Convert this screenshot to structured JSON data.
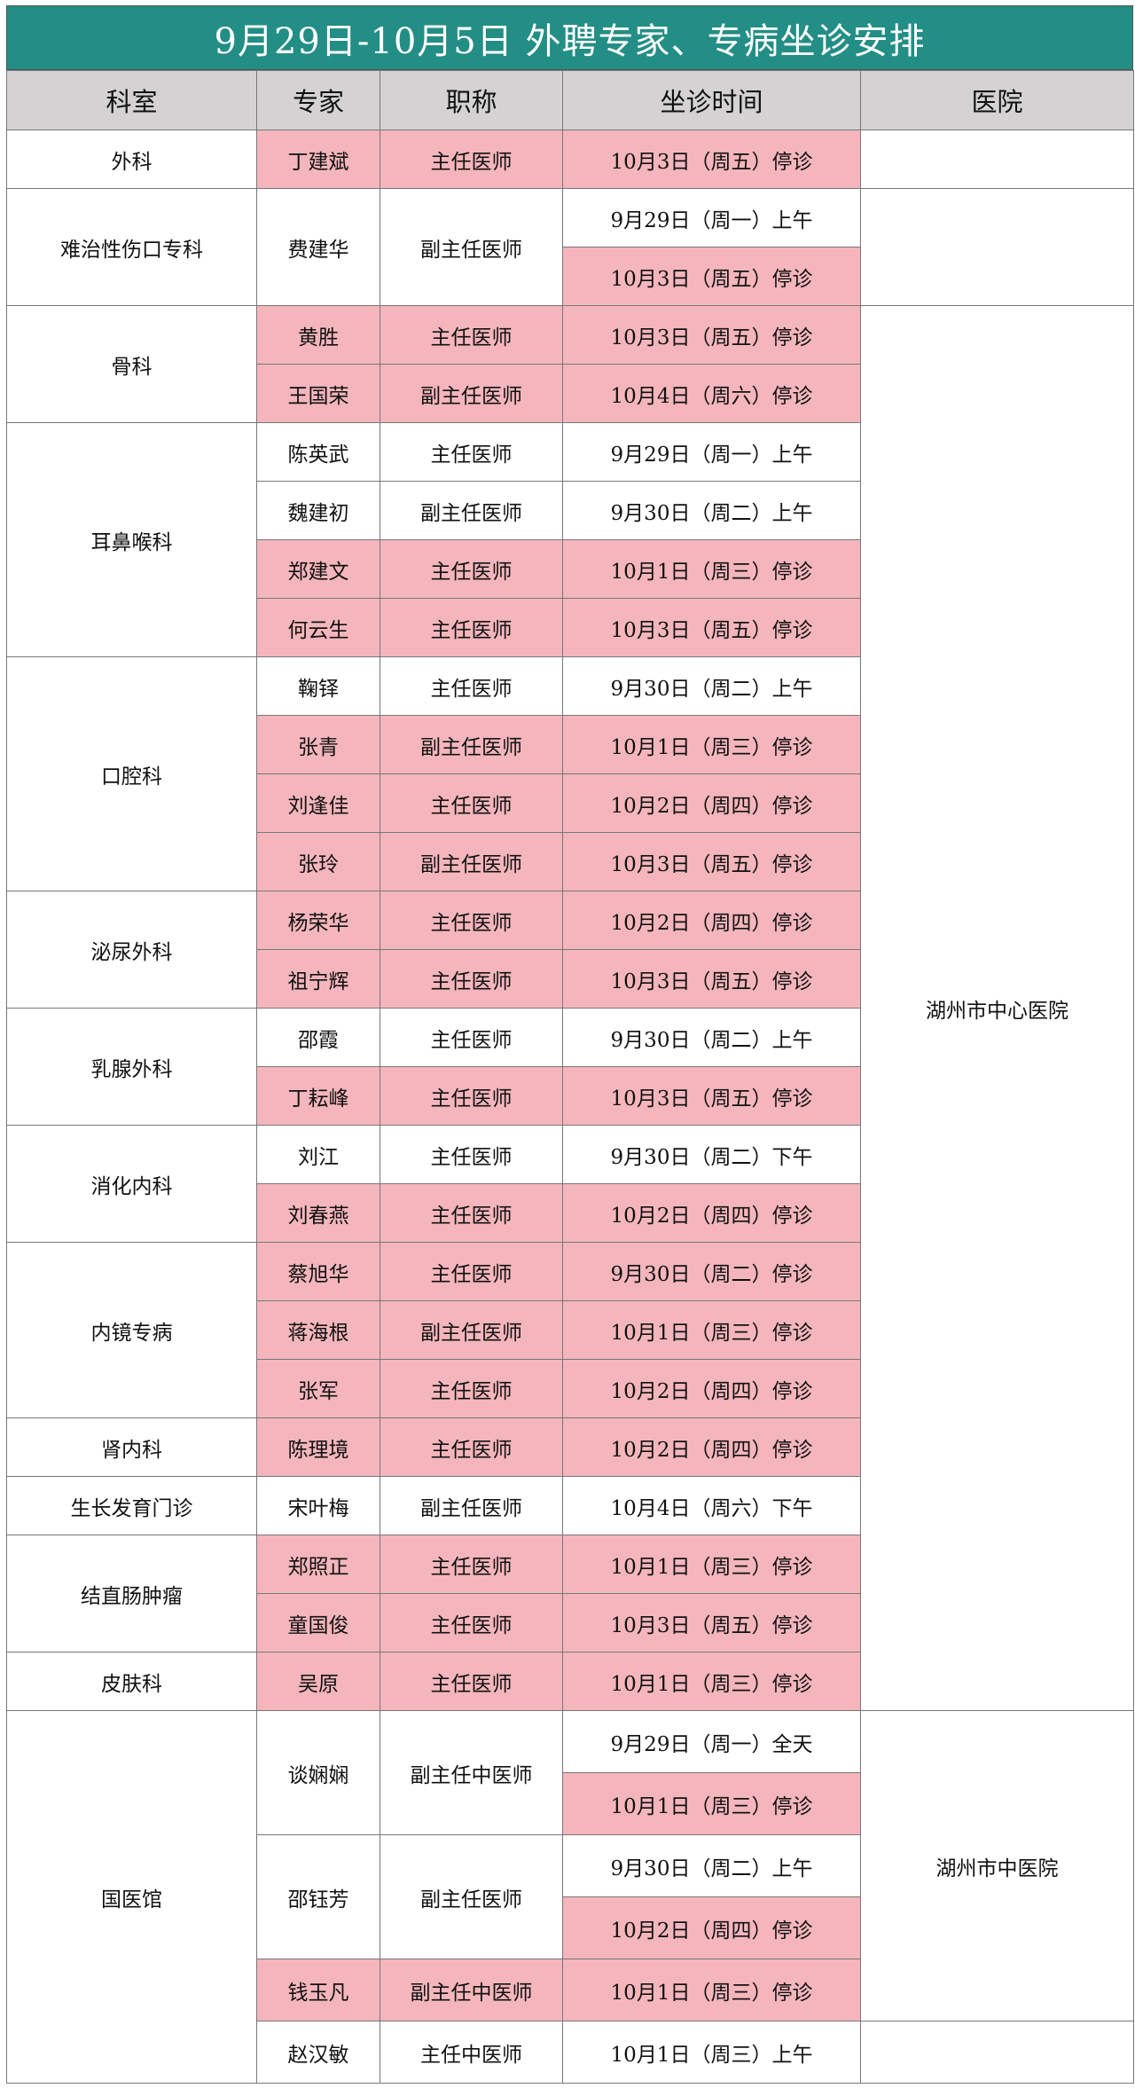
{
  "title": "9月29日-10月5日  外聘专家、专病坐诊安排",
  "colors": {
    "title_bg": "#238e85",
    "header_bg": "#d4d2d3",
    "highlight": "#f4b6bc"
  },
  "headers": [
    "科室",
    "专家",
    "职称",
    "坐诊时间",
    "医院"
  ],
  "departments": [
    {
      "name": "外科",
      "experts": [
        {
          "name": "丁建斌",
          "title": "主任医师",
          "slots": [
            "10月3日（周五）停诊"
          ]
        }
      ]
    },
    {
      "name": "难治性伤口专科",
      "experts": [
        {
          "name": "费建华",
          "title": "副主任医师",
          "slots": [
            "9月29日（周一）上午",
            "10月3日（周五）停诊"
          ]
        }
      ]
    },
    {
      "name": "骨科",
      "experts": [
        {
          "name": "黄胜",
          "title": "主任医师",
          "slots": [
            "10月3日（周五）停诊"
          ]
        },
        {
          "name": "王国荣",
          "title": "副主任医师",
          "slots": [
            "10月4日（周六）停诊"
          ]
        }
      ]
    },
    {
      "name": "耳鼻喉科",
      "experts": [
        {
          "name": "陈英武",
          "title": "主任医师",
          "slots": [
            "9月29日（周一）上午"
          ]
        },
        {
          "name": "魏建初",
          "title": "副主任医师",
          "slots": [
            "9月30日（周二）上午"
          ]
        },
        {
          "name": "郑建文",
          "title": "主任医师",
          "slots": [
            "10月1日（周三）停诊"
          ]
        },
        {
          "name": "何云生",
          "title": "主任医师",
          "slots": [
            "10月3日（周五）停诊"
          ]
        }
      ]
    },
    {
      "name": "口腔科",
      "experts": [
        {
          "name": "鞠铎",
          "title": "主任医师",
          "slots": [
            "9月30日（周二）上午"
          ]
        },
        {
          "name": "张青",
          "title": "副主任医师",
          "slots": [
            "10月1日（周三）停诊"
          ]
        },
        {
          "name": "刘逢佳",
          "title": "主任医师",
          "slots": [
            "10月2日（周四）停诊"
          ]
        },
        {
          "name": "张玲",
          "title": "副主任医师",
          "slots": [
            "10月3日（周五）停诊"
          ]
        }
      ]
    },
    {
      "name": "泌尿外科",
      "experts": [
        {
          "name": "杨荣华",
          "title": "主任医师",
          "slots": [
            "10月2日（周四）停诊"
          ]
        },
        {
          "name": "祖宁辉",
          "title": "主任医师",
          "slots": [
            "10月3日（周五）停诊"
          ]
        }
      ]
    },
    {
      "name": "乳腺外科",
      "experts": [
        {
          "name": "邵霞",
          "title": "主任医师",
          "slots": [
            "9月30日（周二）上午"
          ]
        },
        {
          "name": "丁耘峰",
          "title": "主任医师",
          "slots": [
            "10月3日（周五）停诊"
          ]
        }
      ]
    },
    {
      "name": "消化内科",
      "experts": [
        {
          "name": "刘江",
          "title": "主任医师",
          "slots": [
            "9月30日（周二）下午"
          ]
        },
        {
          "name": "刘春燕",
          "title": "主任医师",
          "slots": [
            "10月2日（周四）停诊"
          ]
        }
      ]
    },
    {
      "name": "内镜专病",
      "experts": [
        {
          "name": "蔡旭华",
          "title": "主任医师",
          "slots": [
            "9月30日（周二）停诊"
          ]
        },
        {
          "name": "蒋海根",
          "title": "副主任医师",
          "slots": [
            "10月1日（周三）停诊"
          ]
        },
        {
          "name": "张军",
          "title": "主任医师",
          "slots": [
            "10月2日（周四）停诊"
          ]
        }
      ]
    },
    {
      "name": "肾内科",
      "experts": [
        {
          "name": "陈理境",
          "title": "主任医师",
          "slots": [
            "10月2日（周四）停诊"
          ]
        }
      ]
    },
    {
      "name": "生长发育门诊",
      "experts": [
        {
          "name": "宋叶梅",
          "title": "副主任医师",
          "slots": [
            "10月4日（周六）下午"
          ]
        }
      ]
    },
    {
      "name": "结直肠肿瘤",
      "experts": [
        {
          "name": "郑照正",
          "title": "主任医师",
          "slots": [
            "10月1日（周三）停诊"
          ]
        },
        {
          "name": "童国俊",
          "title": "主任医师",
          "slots": [
            "10月3日（周五）停诊"
          ]
        }
      ]
    },
    {
      "name": "皮肤科",
      "experts": [
        {
          "name": "吴原",
          "title": "主任医师",
          "slots": [
            "10月1日（周三）停诊"
          ]
        }
      ]
    },
    {
      "name": "国医馆",
      "experts": [
        {
          "name": "谈娴娴",
          "title": "副主任中医师",
          "slots": [
            "9月29日（周一）全天",
            "10月1日（周三）停诊"
          ]
        },
        {
          "name": "邵钰芳",
          "title": "副主任医师",
          "slots": [
            "9月30日（周二）上午",
            "10月2日（周四）停诊"
          ]
        },
        {
          "name": "钱玉凡",
          "title": "副主任中医师",
          "slots": [
            "10月1日（周三）停诊"
          ]
        },
        {
          "name": "赵汉敏",
          "title": "主任中医师",
          "slots": [
            "10月1日（周三）上午"
          ]
        }
      ]
    }
  ],
  "hospitals": [
    {
      "name": "",
      "rows": 1
    },
    {
      "name": "",
      "rows": 2
    },
    {
      "name": "湖州市中心医院",
      "rows": 24
    },
    {
      "name": "湖州市中医院",
      "rows": 5
    },
    {
      "name": "",
      "rows": 1
    }
  ],
  "closed_marker": "停诊"
}
